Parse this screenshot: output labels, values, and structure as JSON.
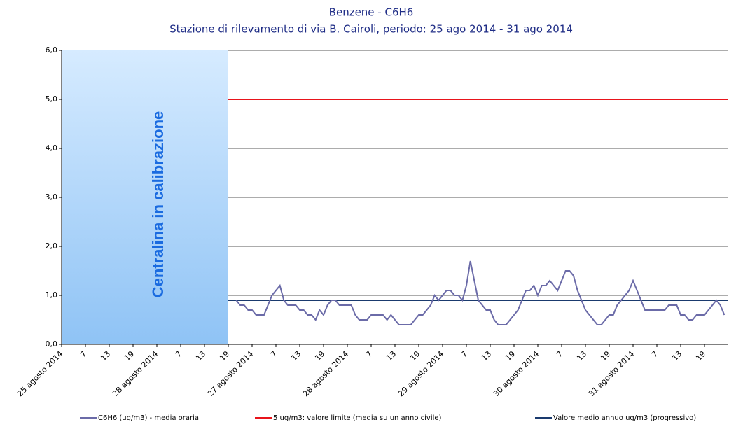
{
  "chart_data": {
    "type": "line",
    "title": "Benzene - C6H6",
    "subtitle": "Stazione di rilevamento di via B. Cairoli, periodo: 25 ago 2014 - 31 ago 2014",
    "categories": [
      "25 agosto 2014",
      null,
      null,
      null,
      null,
      null,
      "7",
      null,
      null,
      null,
      null,
      null,
      "13",
      null,
      null,
      null,
      null,
      null,
      "19",
      null,
      null,
      null,
      null,
      null,
      "28 agosto 2014",
      null,
      null,
      null,
      null,
      null,
      "7",
      null,
      null,
      null,
      null,
      null,
      "13",
      null,
      null,
      null,
      null,
      null,
      "19",
      null,
      null,
      null,
      null,
      null,
      "27 agosto 2014",
      null,
      null,
      null,
      null,
      null,
      "7",
      null,
      null,
      null,
      null,
      null,
      "13",
      null,
      null,
      null,
      null,
      null,
      "19",
      null,
      null,
      null,
      null,
      null,
      "28 agosto 2014",
      null,
      null,
      null,
      null,
      null,
      "7",
      null,
      null,
      null,
      null,
      null,
      "13",
      null,
      null,
      null,
      null,
      null,
      "19",
      null,
      null,
      null,
      null,
      null,
      "29 agosto 2014",
      null,
      null,
      null,
      null,
      null,
      "7",
      null,
      null,
      null,
      null,
      null,
      "13",
      null,
      null,
      null,
      null,
      null,
      "19",
      null,
      null,
      null,
      null,
      null,
      "30 agosto 2014",
      null,
      null,
      null,
      null,
      null,
      "7",
      null,
      null,
      null,
      null,
      null,
      "13",
      null,
      null,
      null,
      null,
      null,
      "19",
      null,
      null,
      null,
      null,
      null,
      "31 agosto 2014",
      null,
      null,
      null,
      null,
      null,
      "7",
      null,
      null,
      null,
      null,
      null,
      "13",
      null,
      null,
      null,
      null,
      null,
      "19",
      null,
      null,
      null,
      null,
      null
    ],
    "series": [
      {
        "name": "C6H6 (ug/m3)  - media oraria",
        "color": "#6b6ba8",
        "values": [
          null,
          null,
          null,
          null,
          null,
          null,
          null,
          null,
          null,
          null,
          null,
          null,
          null,
          null,
          null,
          null,
          null,
          null,
          null,
          null,
          null,
          null,
          null,
          null,
          null,
          null,
          null,
          null,
          null,
          null,
          null,
          null,
          null,
          null,
          null,
          null,
          null,
          null,
          null,
          null,
          null,
          null,
          null,
          null,
          0.9,
          0.8,
          0.8,
          0.7,
          0.7,
          0.6,
          0.6,
          0.6,
          0.8,
          1.0,
          1.1,
          1.2,
          0.9,
          0.8,
          0.8,
          0.8,
          0.7,
          0.7,
          0.6,
          0.6,
          0.5,
          0.7,
          0.6,
          0.8,
          0.9,
          0.9,
          0.8,
          0.8,
          0.8,
          0.8,
          0.6,
          0.5,
          0.5,
          0.5,
          0.6,
          0.6,
          0.6,
          0.6,
          0.5,
          0.6,
          0.5,
          0.4,
          0.4,
          0.4,
          0.4,
          0.5,
          0.6,
          0.6,
          0.7,
          0.8,
          1.0,
          0.9,
          1.0,
          1.1,
          1.1,
          1.0,
          1.0,
          0.9,
          1.2,
          1.7,
          1.3,
          0.9,
          0.8,
          0.7,
          0.7,
          0.5,
          0.4,
          0.4,
          0.4,
          0.5,
          0.6,
          0.7,
          0.9,
          1.1,
          1.1,
          1.2,
          1.0,
          1.2,
          1.2,
          1.3,
          1.2,
          1.1,
          1.3,
          1.5,
          1.5,
          1.4,
          1.1,
          0.9,
          0.7,
          0.6,
          0.5,
          0.4,
          0.4,
          0.5,
          0.6,
          0.6,
          0.8,
          0.9,
          1.0,
          1.1,
          1.3,
          1.1,
          0.9,
          0.7,
          0.7,
          0.7,
          0.7,
          0.7,
          0.7,
          0.8,
          0.8,
          0.8,
          0.6,
          0.6,
          0.5,
          0.5,
          0.6,
          0.6,
          0.6,
          0.7,
          0.8,
          0.9,
          0.8,
          0.6
        ]
      }
    ],
    "reference_lines": [
      {
        "name": "5 ug/m3: valore limite (media su un anno civile)",
        "color": "#e8141b",
        "value": 5
      },
      {
        "name": "Valore medio annuo ug/m3 (progressivo)",
        "color": "#1a3a6e",
        "value": 0.9
      }
    ],
    "annotation": {
      "text": "Centralina in calibrazione",
      "x_end": 42
    },
    "ylim": [
      0,
      6
    ],
    "yticks": [
      {
        "value": 0,
        "label": "0,0"
      },
      {
        "value": 1,
        "label": "1,0"
      },
      {
        "value": 2,
        "label": "2,0"
      },
      {
        "value": 3,
        "label": "3,0"
      },
      {
        "value": 4,
        "label": "4,0"
      },
      {
        "value": 5,
        "label": "5,0"
      },
      {
        "value": 6,
        "label": "6,0"
      }
    ],
    "grid": true
  }
}
